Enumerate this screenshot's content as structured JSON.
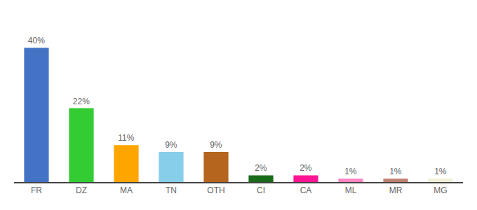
{
  "chart_data": {
    "type": "bar",
    "categories": [
      "FR",
      "DZ",
      "MA",
      "TN",
      "OTH",
      "CI",
      "CA",
      "ML",
      "MR",
      "MG"
    ],
    "values": [
      40,
      22,
      11,
      9,
      9,
      2,
      2,
      1,
      1,
      1
    ],
    "value_labels": [
      "40%",
      "22%",
      "11%",
      "9%",
      "9%",
      "2%",
      "2%",
      "1%",
      "1%",
      "1%"
    ],
    "colors": [
      "#4472c4",
      "#33cc33",
      "#ffa500",
      "#87ceeb",
      "#b5651d",
      "#1a6b1a",
      "#ff1493",
      "#ff85c0",
      "#c08070",
      "#f0f0d8"
    ],
    "ylim": [
      0,
      48
    ],
    "data_labels": true,
    "tick_labels": "x",
    "grid": false
  }
}
